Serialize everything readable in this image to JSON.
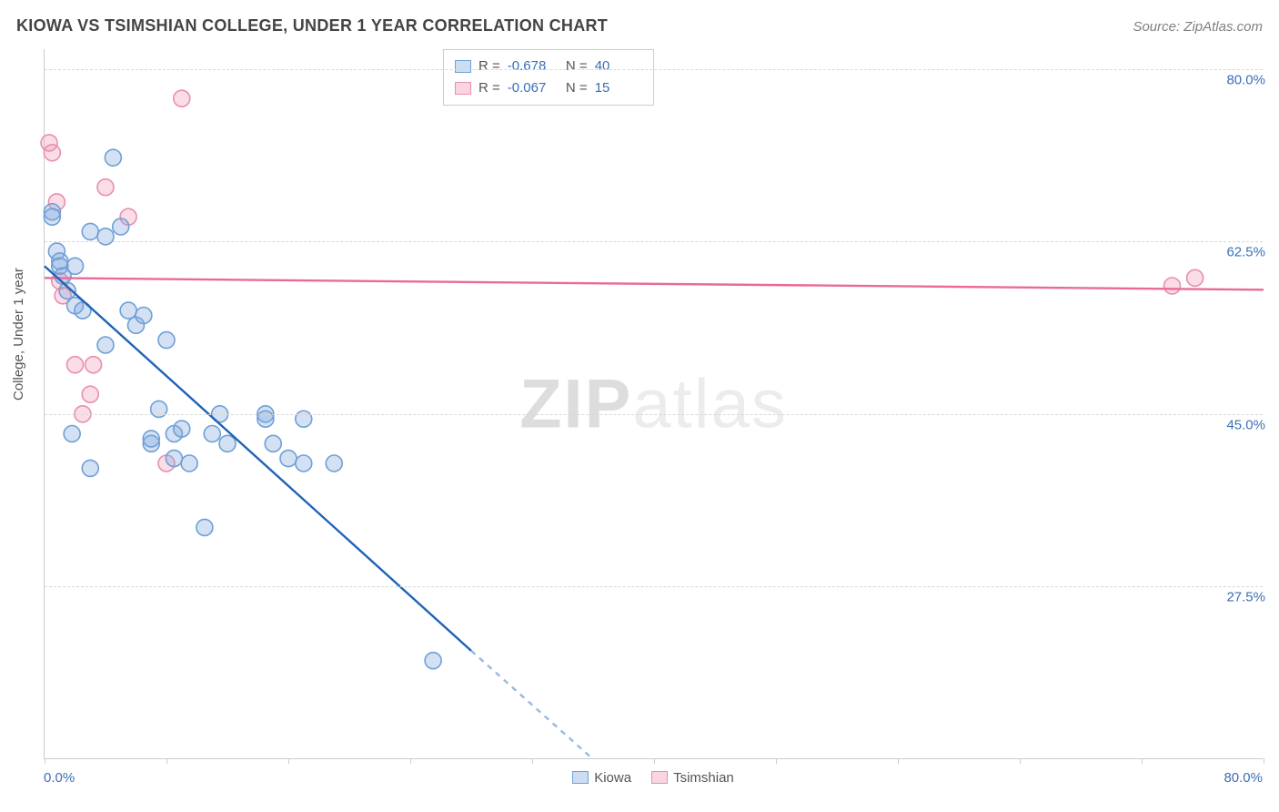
{
  "header": {
    "title": "KIOWA VS TSIMSHIAN COLLEGE, UNDER 1 YEAR CORRELATION CHART",
    "source": "Source: ZipAtlas.com"
  },
  "axes": {
    "y_title": "College, Under 1 year",
    "x_min_label": "0.0%",
    "x_max_label": "80.0%",
    "x_min": 0,
    "x_max": 80,
    "y_min": 10,
    "y_max": 82,
    "x_ticks": [
      0,
      8,
      16,
      24,
      32,
      40,
      48,
      56,
      64,
      72,
      80
    ],
    "y_grid": [
      {
        "value": 80.0,
        "label": "80.0%"
      },
      {
        "value": 62.5,
        "label": "62.5%"
      },
      {
        "value": 45.0,
        "label": "45.0%"
      },
      {
        "value": 27.5,
        "label": "27.5%"
      }
    ]
  },
  "series": {
    "kiowa": {
      "label": "Kiowa",
      "fill": "rgba(130,170,220,0.35)",
      "stroke": "#6f9fd8",
      "trend_stroke": "#1f63b8",
      "trend_dash_stroke": "#9ab8e0",
      "r_value": "-0.678",
      "n_value": "40",
      "trend": {
        "x1": 0,
        "y1": 60.0,
        "x2_solid": 28,
        "y2_solid": 21.0,
        "x2": 36,
        "y2": 10.0
      },
      "points": [
        [
          0.5,
          65.5
        ],
        [
          0.5,
          65.0
        ],
        [
          0.8,
          61.5
        ],
        [
          1.0,
          60.5
        ],
        [
          1.0,
          60.0
        ],
        [
          1.2,
          59.0
        ],
        [
          1.5,
          57.5
        ],
        [
          2.0,
          60.0
        ],
        [
          2.0,
          56.0
        ],
        [
          2.5,
          55.5
        ],
        [
          3.0,
          63.5
        ],
        [
          4.0,
          63.0
        ],
        [
          4.0,
          52.0
        ],
        [
          4.5,
          71.0
        ],
        [
          5.0,
          64.0
        ],
        [
          5.5,
          55.5
        ],
        [
          6.0,
          54.0
        ],
        [
          6.5,
          55.0
        ],
        [
          7.0,
          42.0
        ],
        [
          7.0,
          42.5
        ],
        [
          7.5,
          45.5
        ],
        [
          8.0,
          52.5
        ],
        [
          8.5,
          43.0
        ],
        [
          8.5,
          40.5
        ],
        [
          9.0,
          43.5
        ],
        [
          9.5,
          40.0
        ],
        [
          10.5,
          33.5
        ],
        [
          11.0,
          43.0
        ],
        [
          11.5,
          45.0
        ],
        [
          12.0,
          42.0
        ],
        [
          14.5,
          45.0
        ],
        [
          14.5,
          44.5
        ],
        [
          15.0,
          42.0
        ],
        [
          16.0,
          40.5
        ],
        [
          17.0,
          44.5
        ],
        [
          17.0,
          40.0
        ],
        [
          19.0,
          40.0
        ],
        [
          25.5,
          20.0
        ],
        [
          1.8,
          43.0
        ],
        [
          3.0,
          39.5
        ]
      ]
    },
    "tsimshian": {
      "label": "Tsimshian",
      "fill": "rgba(240,150,180,0.32)",
      "stroke": "#e88fb0",
      "trend_stroke": "#e96a9a",
      "r_value": "-0.067",
      "n_value": "15",
      "trend": {
        "x1": 0,
        "y1": 58.8,
        "x2": 80,
        "y2": 57.6
      },
      "points": [
        [
          0.3,
          72.5
        ],
        [
          0.5,
          71.5
        ],
        [
          0.8,
          66.5
        ],
        [
          1.0,
          58.5
        ],
        [
          1.2,
          57.0
        ],
        [
          2.0,
          50.0
        ],
        [
          2.5,
          45.0
        ],
        [
          3.0,
          47.0
        ],
        [
          3.2,
          50.0
        ],
        [
          4.0,
          68.0
        ],
        [
          5.5,
          65.0
        ],
        [
          8.0,
          40.0
        ],
        [
          9.0,
          77.0
        ],
        [
          74.0,
          58.0
        ],
        [
          75.5,
          58.8
        ]
      ]
    }
  },
  "bottom_legend": {
    "items": [
      {
        "key": "kiowa"
      },
      {
        "key": "tsimshian"
      }
    ]
  },
  "watermark": {
    "bold": "ZIP",
    "rest": "atlas"
  },
  "style": {
    "marker_radius": 9,
    "marker_stroke_width": 1.6,
    "trend_width": 2.4,
    "swatch_bg_kiowa": "rgba(130,170,220,0.4)",
    "swatch_border_kiowa": "#6f9fd8",
    "swatch_bg_tsimshian": "rgba(240,150,180,0.4)",
    "swatch_border_tsimshian": "#e88fb0"
  }
}
